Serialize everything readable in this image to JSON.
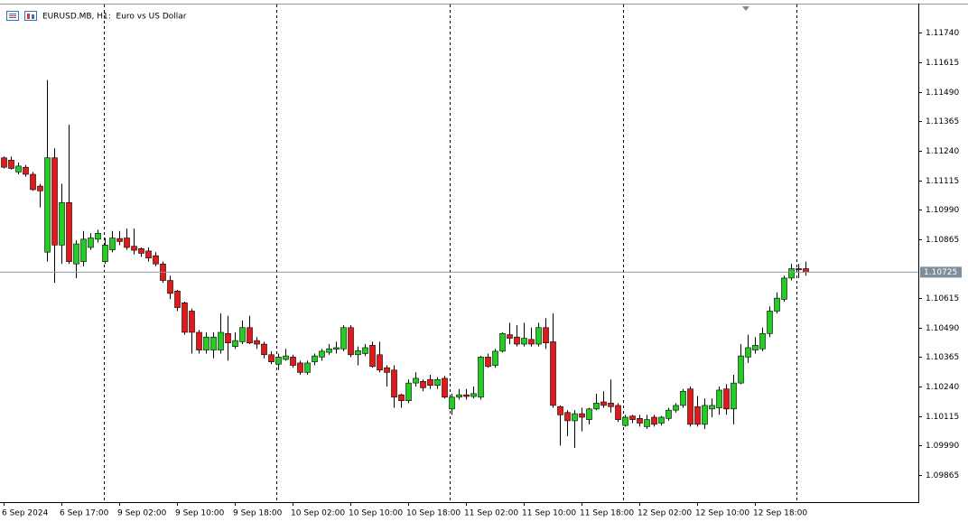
{
  "chart_data": {
    "type": "candlestick",
    "title": "EURUSD.MB, H1:  Euro vs US Dollar",
    "categories": [
      "6 Sep 2024",
      null,
      null,
      null,
      null,
      null,
      null,
      null,
      "6 Sep 17:00",
      null,
      null,
      null,
      null,
      null,
      null,
      null,
      "9 Sep 02:00",
      null,
      null,
      null,
      null,
      null,
      null,
      null,
      "9 Sep 10:00",
      null,
      null,
      null,
      null,
      null,
      null,
      null,
      "9 Sep 18:00",
      null,
      null,
      null,
      null,
      null,
      null,
      null,
      "10 Sep 02:00",
      null,
      null,
      null,
      null,
      null,
      null,
      null,
      "10 Sep 10:00",
      null,
      null,
      null,
      null,
      null,
      null,
      null,
      "10 Sep 18:00",
      null,
      null,
      null,
      null,
      null,
      null,
      null,
      "11 Sep 02:00",
      null,
      null,
      null,
      null,
      null,
      null,
      null,
      "11 Sep 10:00",
      null,
      null,
      null,
      null,
      null,
      null,
      null,
      "11 Sep 18:00",
      null,
      null,
      null,
      null,
      null,
      null,
      null,
      "12 Sep 02:00",
      null,
      null,
      null,
      null,
      null,
      null,
      null,
      "12 Sep 10:00",
      null,
      null,
      null,
      null,
      null,
      null,
      null,
      "12 Sep 18:00",
      null,
      null,
      null,
      null,
      null,
      null,
      null
    ],
    "open": [
      1.1121,
      1.112,
      1.1115,
      1.1117,
      1.1114,
      1.1109,
      1.1081,
      1.1121,
      1.1084,
      1.1102,
      1.1076,
      1.1077,
      1.1083,
      1.10865,
      1.1077,
      1.1082,
      1.10868,
      1.1087,
      1.10835,
      1.10825,
      1.10815,
      1.10795,
      1.1076,
      1.1069,
      1.10645,
      1.10595,
      1.1056,
      1.1047,
      1.10395,
      1.10395,
      1.10395,
      1.10465,
      1.1041,
      1.1043,
      1.1049,
      1.10435,
      1.1042,
      1.10375,
      1.10335,
      1.10355,
      1.10365,
      1.1034,
      1.103,
      1.10345,
      1.10365,
      1.10385,
      1.10398,
      1.104,
      1.1049,
      1.10375,
      1.1038,
      1.10415,
      1.10375,
      1.1032,
      1.1031,
      1.10205,
      1.1018,
      1.10255,
      1.10262,
      1.1027,
      1.10245,
      1.10275,
      1.10145,
      1.10195,
      1.10205,
      1.10198,
      1.10195,
      1.10365,
      1.1033,
      1.1039,
      1.1046,
      1.1045,
      1.1042,
      1.1044,
      1.1042,
      1.1049,
      1.1043,
      1.10155,
      1.1013,
      1.10095,
      1.10125,
      1.101,
      1.10145,
      1.10175,
      1.1017,
      1.1016,
      1.10075,
      1.10115,
      1.10105,
      1.1007,
      1.1011,
      1.10085,
      1.10105,
      1.1014,
      1.1016,
      1.1023,
      1.10155,
      1.1008,
      1.10145,
      1.1015,
      1.1023,
      1.10145,
      1.10255,
      1.10365,
      1.10395,
      1.104,
      1.10465,
      1.1056,
      1.1061,
      1.107,
      1.1074,
      1.1074
    ],
    "high": [
      1.11215,
      1.11215,
      1.1119,
      1.1118,
      1.1115,
      1.111,
      1.1154,
      1.1125,
      1.111,
      1.1135,
      1.1086,
      1.109,
      1.1089,
      1.10905,
      1.1087,
      1.109,
      1.109,
      1.1091,
      1.1091,
      1.1083,
      1.1083,
      1.1081,
      1.1077,
      1.1071,
      1.1065,
      1.106,
      1.1057,
      1.1048,
      1.1047,
      1.1047,
      1.1055,
      1.1054,
      1.1047,
      1.1052,
      1.1054,
      1.1045,
      1.1043,
      1.1039,
      1.1038,
      1.104,
      1.10375,
      1.1035,
      1.1035,
      1.1038,
      1.104,
      1.1042,
      1.1043,
      1.105,
      1.105,
      1.1041,
      1.1042,
      1.1043,
      1.1043,
      1.1033,
      1.1033,
      1.1021,
      1.1027,
      1.103,
      1.1027,
      1.1029,
      1.1028,
      1.10285,
      1.1021,
      1.1023,
      1.1023,
      1.1024,
      1.1037,
      1.1038,
      1.104,
      1.1047,
      1.1051,
      1.105,
      1.1051,
      1.1049,
      1.1051,
      1.1053,
      1.1055,
      1.1016,
      1.1014,
      1.1014,
      1.1015,
      1.1015,
      1.1021,
      1.1022,
      1.1027,
      1.1017,
      1.1012,
      1.1012,
      1.1012,
      1.1012,
      1.1012,
      1.10115,
      1.1015,
      1.1017,
      1.1023,
      1.1024,
      1.102,
      1.1019,
      1.1019,
      1.1024,
      1.1025,
      1.1029,
      1.1042,
      1.1046,
      1.1045,
      1.1049,
      1.1058,
      1.1064,
      1.1071,
      1.1076,
      1.1076,
      1.1077
    ],
    "low": [
      1.11165,
      1.1116,
      1.1114,
      1.1113,
      1.1107,
      1.11,
      1.1077,
      1.1068,
      1.1076,
      1.1076,
      1.107,
      1.1075,
      1.1082,
      1.1085,
      1.1076,
      1.1081,
      1.1084,
      1.1082,
      1.108,
      1.1079,
      1.1077,
      1.1075,
      1.1068,
      1.1061,
      1.1056,
      1.1046,
      1.1038,
      1.1038,
      1.1038,
      1.1036,
      1.1038,
      1.1035,
      1.104,
      1.1042,
      1.1042,
      1.104,
      1.1036,
      1.10335,
      1.1031,
      1.1035,
      1.1032,
      1.1029,
      1.1029,
      1.1033,
      1.1035,
      1.10375,
      1.1038,
      1.1039,
      1.10365,
      1.1033,
      1.1037,
      1.1032,
      1.103,
      1.1024,
      1.1015,
      1.1015,
      1.1017,
      1.1024,
      1.1022,
      1.1023,
      1.1023,
      1.1019,
      1.1012,
      1.10185,
      1.10185,
      1.1019,
      1.10185,
      1.1032,
      1.1032,
      1.10385,
      1.1042,
      1.1041,
      1.1041,
      1.1041,
      1.1041,
      1.104,
      1.1015,
      1.0999,
      1.1003,
      1.0998,
      1.1005,
      1.1008,
      1.1014,
      1.1015,
      1.1013,
      1.1009,
      1.1007,
      1.10085,
      1.1007,
      1.1006,
      1.1007,
      1.10075,
      1.10095,
      1.1013,
      1.1015,
      1.1007,
      1.1007,
      1.1006,
      1.1011,
      1.1012,
      1.1012,
      1.1008,
      1.1025,
      1.1034,
      1.1038,
      1.1039,
      1.1045,
      1.1055,
      1.106,
      1.1069,
      1.107,
      1.1071
    ],
    "close": [
      1.1117,
      1.11165,
      1.11175,
      1.1114,
      1.11075,
      1.1107,
      1.1121,
      1.1084,
      1.1102,
      1.1077,
      1.10845,
      1.10865,
      1.1087,
      1.1089,
      1.1084,
      1.1087,
      1.10855,
      1.1083,
      1.10818,
      1.10805,
      1.10785,
      1.1076,
      1.1069,
      1.10635,
      1.10575,
      1.1047,
      1.1047,
      1.10395,
      1.1045,
      1.1045,
      1.1047,
      1.10425,
      1.10435,
      1.1049,
      1.10425,
      1.1042,
      1.10375,
      1.10345,
      1.10365,
      1.1037,
      1.1033,
      1.103,
      1.1034,
      1.1037,
      1.1039,
      1.104,
      1.10405,
      1.1049,
      1.10375,
      1.10392,
      1.10405,
      1.10325,
      1.1031,
      1.103,
      1.10195,
      1.1018,
      1.10255,
      1.10275,
      1.10235,
      1.10245,
      1.1027,
      1.10195,
      1.10195,
      1.10205,
      1.10198,
      1.1021,
      1.10365,
      1.10325,
      1.1039,
      1.10465,
      1.10445,
      1.1042,
      1.10445,
      1.1042,
      1.1049,
      1.10425,
      1.1016,
      1.1012,
      1.10095,
      1.10125,
      1.1011,
      1.10145,
      1.1017,
      1.1016,
      1.10155,
      1.101,
      1.1011,
      1.101,
      1.10085,
      1.101,
      1.1008,
      1.1011,
      1.1014,
      1.1016,
      1.1022,
      1.1008,
      1.1008,
      1.1016,
      1.1016,
      1.10225,
      1.10145,
      1.10255,
      1.1037,
      1.10405,
      1.10415,
      1.10465,
      1.1056,
      1.10615,
      1.107,
      1.1074,
      1.10735,
      1.10725
    ],
    "up_color": "#22cc22",
    "down_color": "#e31a1a",
    "last_price": 1.10725,
    "ylim": [
      1.0975,
      1.1186
    ],
    "yticks": [
      {
        "value": 1.1174,
        "label": "1.11740"
      },
      1.11615,
      {
        "value": 1.1149,
        "label": "1.11490"
      },
      1.11365,
      {
        "value": 1.1124,
        "label": "1.11240"
      },
      1.11115,
      {
        "value": 1.1099,
        "label": "1.10990"
      },
      1.10865,
      1.10615,
      {
        "value": 1.1049,
        "label": "1.10490"
      },
      1.10365,
      {
        "value": 1.1024,
        "label": "1.10240"
      },
      1.10115,
      {
        "value": 1.0999,
        "label": "1.09990"
      },
      1.09865
    ]
  }
}
